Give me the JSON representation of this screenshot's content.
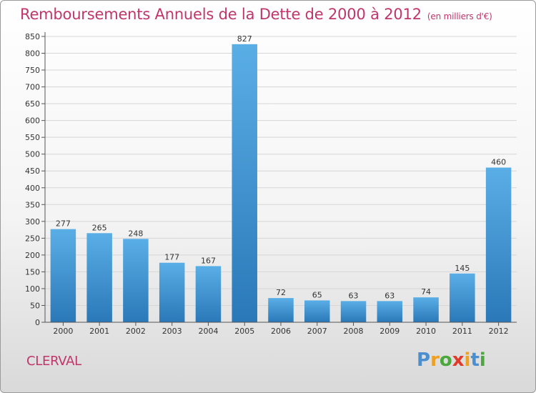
{
  "header": {
    "title": "Remboursements Annuels de la Dette de 2000 à 2012",
    "unit": "(en milliers d'€)"
  },
  "commune": "CLERVAL",
  "brand": {
    "name": "Proxiti"
  },
  "colors": {
    "title": "#c0366b",
    "bar_top": "#5aaee6",
    "bar_bottom": "#2a78b8",
    "grid": "#d6d6d6"
  },
  "chart_data": {
    "type": "bar",
    "title": "Remboursements Annuels de la Dette de 2000 à 2012",
    "subtitle": "(en milliers d'€)",
    "xlabel": "",
    "ylabel": "",
    "categories": [
      "2000",
      "2001",
      "2002",
      "2003",
      "2004",
      "2005",
      "2006",
      "2007",
      "2008",
      "2009",
      "2010",
      "2011",
      "2012"
    ],
    "values": [
      277,
      265,
      248,
      177,
      167,
      827,
      72,
      65,
      63,
      63,
      74,
      145,
      460
    ],
    "ylim": [
      0,
      850
    ],
    "yticks": [
      0,
      50,
      100,
      150,
      200,
      250,
      300,
      350,
      400,
      450,
      500,
      550,
      600,
      650,
      700,
      750,
      800,
      850
    ],
    "grid": true,
    "data_labels": true
  }
}
